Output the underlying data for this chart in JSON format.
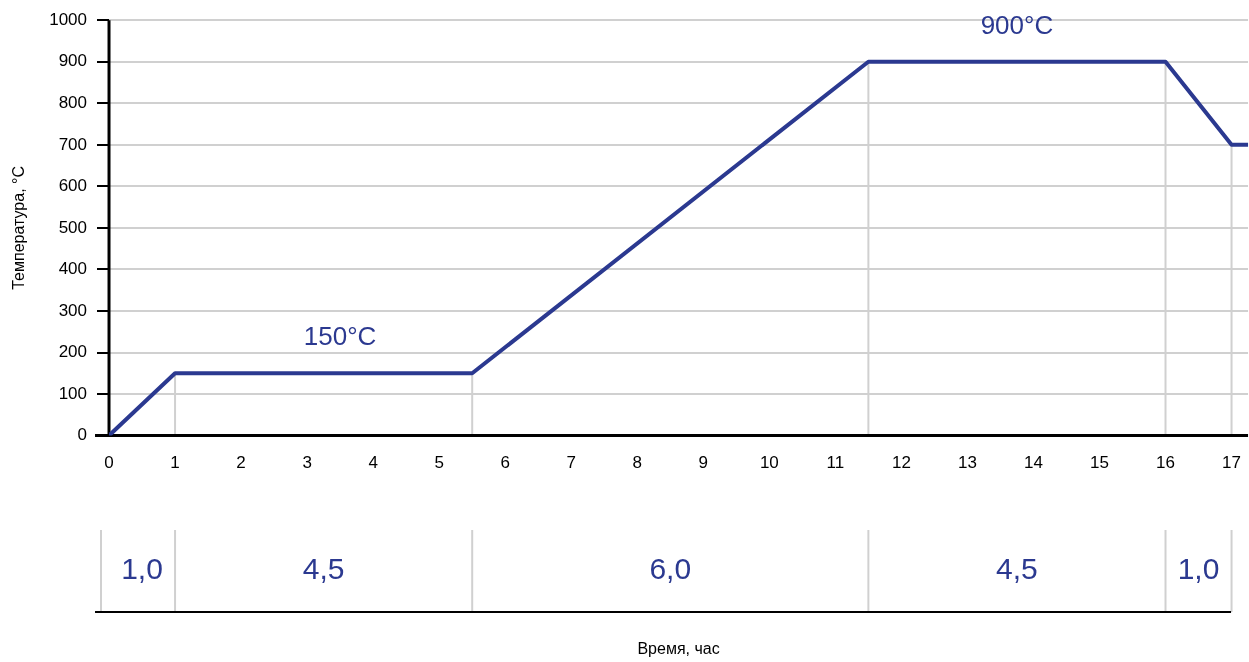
{
  "chart_data": {
    "type": "line",
    "ylabel": "Температура, °C",
    "x": [
      0,
      1,
      5.5,
      11.5,
      16,
      17,
      17.25
    ],
    "series": [
      {
        "color": "#2b3990",
        "values": [
          0,
          150,
          150,
          900,
          900,
          700,
          700
        ]
      }
    ],
    "xlim": [
      0,
      17.25
    ],
    "xticks": [
      0,
      1,
      2,
      3,
      4,
      5,
      6,
      7,
      8,
      9,
      10,
      11,
      12,
      13,
      14,
      15,
      16,
      17
    ],
    "ylim": [
      0,
      1000
    ],
    "yticks": [
      0,
      100,
      200,
      300,
      400,
      500,
      600,
      700,
      800,
      900,
      1000
    ],
    "grid": "y",
    "legend": false,
    "marker": "none",
    "line_style": "solid",
    "ref_lines": [
      {
        "axis": "x",
        "value": 1,
        "color": "#d0d0d0"
      },
      {
        "axis": "x",
        "value": 5.5,
        "color": "#d0d0d0"
      },
      {
        "axis": "x",
        "value": 11.5,
        "color": "#d0d0d0"
      },
      {
        "axis": "x",
        "value": 16,
        "color": "#d0d0d0"
      },
      {
        "axis": "x",
        "value": 17,
        "color": "#d0d0d0"
      }
    ],
    "annotations": [
      {
        "text": "150°C",
        "x": 3.5,
        "y": 150
      },
      {
        "text": "900°C",
        "x": 13.75,
        "y": 900
      },
      "1,0",
      "4,5",
      "6,0",
      "4,5",
      "1,0",
      "Время, час"
    ]
  }
}
